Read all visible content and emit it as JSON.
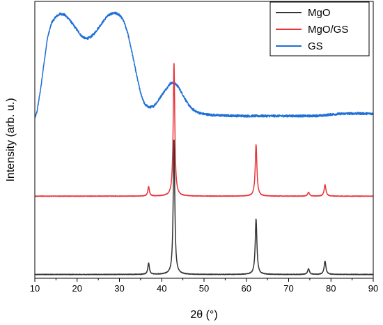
{
  "chart_data": {
    "type": "line",
    "xlabel": "2θ (°)",
    "ylabel": "Intensity (arb. u.)",
    "xlim": [
      10,
      90
    ],
    "x_ticks": [
      10,
      20,
      30,
      40,
      50,
      60,
      70,
      80,
      90
    ],
    "y_ticks_shown": false,
    "grid": false,
    "legend_position": "top-right",
    "series": [
      {
        "name": "MgO",
        "color": "#333333",
        "baseline": 0.02,
        "peaks": [
          {
            "x": 36.9,
            "height": 0.06,
            "width": 0.22
          },
          {
            "x": 42.9,
            "height": 0.71,
            "width": 0.22
          },
          {
            "x": 62.3,
            "height": 0.29,
            "width": 0.24
          },
          {
            "x": 74.7,
            "height": 0.03,
            "width": 0.25
          },
          {
            "x": 78.6,
            "height": 0.07,
            "width": 0.25
          }
        ]
      },
      {
        "name": "MgO/GS",
        "color": "#e8353a",
        "baseline": 0.43,
        "peaks": [
          {
            "x": 36.9,
            "height": 0.05,
            "width": 0.22
          },
          {
            "x": 42.9,
            "height": 0.7,
            "width": 0.22
          },
          {
            "x": 62.3,
            "height": 0.27,
            "width": 0.24
          },
          {
            "x": 74.7,
            "height": 0.02,
            "width": 0.25
          },
          {
            "x": 78.6,
            "height": 0.06,
            "width": 0.25
          }
        ]
      },
      {
        "name": "GS",
        "color": "#1f6fd6",
        "points": [
          [
            10.0,
            0.84
          ],
          [
            10.5,
            0.87
          ],
          [
            11.0,
            0.94
          ],
          [
            11.5,
            1.01
          ],
          [
            12.0,
            1.1
          ],
          [
            12.5,
            1.18
          ],
          [
            13.0,
            1.26
          ],
          [
            14.0,
            1.34
          ],
          [
            15.0,
            1.37
          ],
          [
            16.0,
            1.385
          ],
          [
            17.0,
            1.38
          ],
          [
            18.0,
            1.36
          ],
          [
            19.0,
            1.33
          ],
          [
            20.0,
            1.3
          ],
          [
            21.0,
            1.27
          ],
          [
            22.0,
            1.255
          ],
          [
            23.0,
            1.26
          ],
          [
            24.0,
            1.28
          ],
          [
            25.0,
            1.31
          ],
          [
            26.0,
            1.34
          ],
          [
            27.0,
            1.37
          ],
          [
            28.0,
            1.385
          ],
          [
            29.0,
            1.39
          ],
          [
            30.0,
            1.38
          ],
          [
            31.0,
            1.35
          ],
          [
            32.0,
            1.28
          ],
          [
            33.0,
            1.18
          ],
          [
            34.0,
            1.07
          ],
          [
            35.0,
            0.97
          ],
          [
            36.0,
            0.91
          ],
          [
            37.0,
            0.895
          ],
          [
            38.0,
            0.9
          ],
          [
            39.0,
            0.925
          ],
          [
            40.0,
            0.96
          ],
          [
            41.0,
            0.99
          ],
          [
            42.0,
            1.02
          ],
          [
            43.0,
            1.025
          ],
          [
            44.0,
            1.0
          ],
          [
            45.0,
            0.96
          ],
          [
            46.0,
            0.92
          ],
          [
            47.0,
            0.89
          ],
          [
            48.0,
            0.875
          ],
          [
            49.0,
            0.865
          ],
          [
            50.0,
            0.86
          ],
          [
            52.0,
            0.855
          ],
          [
            55.0,
            0.852
          ],
          [
            60.0,
            0.85
          ],
          [
            65.0,
            0.85
          ],
          [
            70.0,
            0.85
          ],
          [
            75.0,
            0.85
          ],
          [
            78.0,
            0.852
          ],
          [
            80.0,
            0.858
          ],
          [
            83.0,
            0.862
          ],
          [
            86.0,
            0.863
          ],
          [
            90.0,
            0.862
          ]
        ]
      }
    ]
  }
}
